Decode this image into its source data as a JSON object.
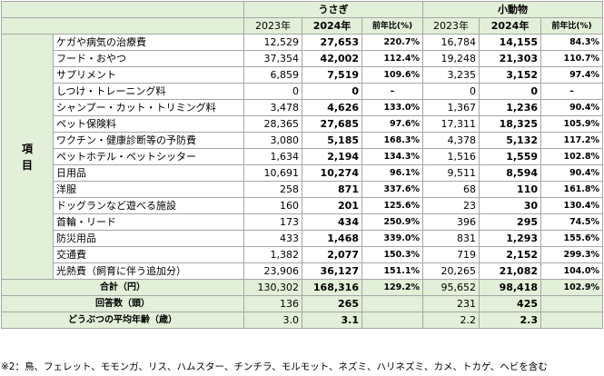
{
  "header": {
    "group1": "うさぎ",
    "group2": "小動物",
    "col_2023": "2023年",
    "col_2024": "2024年",
    "col_yoy": "前年比(%)"
  },
  "category_label": [
    "項",
    "目"
  ],
  "rows": [
    {
      "label": "ケガや病気の治療費",
      "r23": "12,529",
      "r24": "27,653",
      "ryoy": "220.7%",
      "s23": "16,784",
      "s24": "14,155",
      "syoy": "84.3%"
    },
    {
      "label": "フード・おやつ",
      "r23": "37,354",
      "r24": "42,002",
      "ryoy": "112.4%",
      "s23": "19,248",
      "s24": "21,303",
      "syoy": "110.7%"
    },
    {
      "label": "サプリメント",
      "r23": "6,859",
      "r24": "7,519",
      "ryoy": "109.6%",
      "s23": "3,235",
      "s24": "3,152",
      "syoy": "97.4%"
    },
    {
      "label": "しつけ・トレーニング料",
      "r23": "0",
      "r24": "0",
      "ryoy": "–",
      "s23": "0",
      "s24": "0",
      "syoy": "–"
    },
    {
      "label": "シャンプー・カット・トリミング料",
      "r23": "3,478",
      "r24": "4,626",
      "ryoy": "133.0%",
      "s23": "1,367",
      "s24": "1,236",
      "syoy": "90.4%"
    },
    {
      "label": "ペット保険料",
      "r23": "28,365",
      "r24": "27,685",
      "ryoy": "97.6%",
      "s23": "17,311",
      "s24": "18,325",
      "syoy": "105.9%"
    },
    {
      "label": "ワクチン・健康診断等の予防費",
      "r23": "3,080",
      "r24": "5,185",
      "ryoy": "168.3%",
      "s23": "4,378",
      "s24": "5,132",
      "syoy": "117.2%"
    },
    {
      "label": "ペットホテル・ペットシッター",
      "r23": "1,634",
      "r24": "2,194",
      "ryoy": "134.3%",
      "s23": "1,516",
      "s24": "1,559",
      "syoy": "102.8%"
    },
    {
      "label": "日用品",
      "r23": "10,691",
      "r24": "10,274",
      "ryoy": "96.1%",
      "s23": "9,511",
      "s24": "8,594",
      "syoy": "90.4%"
    },
    {
      "label": "洋服",
      "r23": "258",
      "r24": "871",
      "ryoy": "337.6%",
      "s23": "68",
      "s24": "110",
      "syoy": "161.8%"
    },
    {
      "label": "ドッグランなど遊べる施設",
      "r23": "160",
      "r24": "201",
      "ryoy": "125.6%",
      "s23": "23",
      "s24": "30",
      "syoy": "130.4%"
    },
    {
      "label": "首輪・リード",
      "r23": "173",
      "r24": "434",
      "ryoy": "250.9%",
      "s23": "396",
      "s24": "295",
      "syoy": "74.5%"
    },
    {
      "label": "防災用品",
      "r23": "433",
      "r24": "1,468",
      "ryoy": "339.0%",
      "s23": "831",
      "s24": "1,293",
      "syoy": "155.6%"
    },
    {
      "label": "交通費",
      "r23": "1,382",
      "r24": "2,077",
      "ryoy": "150.3%",
      "s23": "719",
      "s24": "2,152",
      "syoy": "299.3%"
    },
    {
      "label": "光熱費（飼育に伴う追加分）",
      "r23": "23,906",
      "r24": "36,127",
      "ryoy": "151.1%",
      "s23": "20,265",
      "s24": "21,082",
      "syoy": "104.0%"
    }
  ],
  "total": {
    "label": "合計（円）",
    "r23": "130,302",
    "r24": "168,316",
    "ryoy": "129.2%",
    "s23": "95,652",
    "s24": "98,418",
    "syoy": "102.9%"
  },
  "respondents": {
    "label": "回答数（頭）",
    "r23": "136",
    "r24": "265",
    "s23": "231",
    "s24": "425"
  },
  "avg_age": {
    "label": "どうぶつの平均年齢（歳）",
    "r23": "3.0",
    "r24": "3.1",
    "s23": "2.2",
    "s24": "2.3"
  },
  "footnote": "※2：鳥、フェレット、モモンガ、リス、ハムスター、チンチラ、モルモット、ネズミ、ハリネズミ、カメ、トカゲ、ヘビを含む"
}
